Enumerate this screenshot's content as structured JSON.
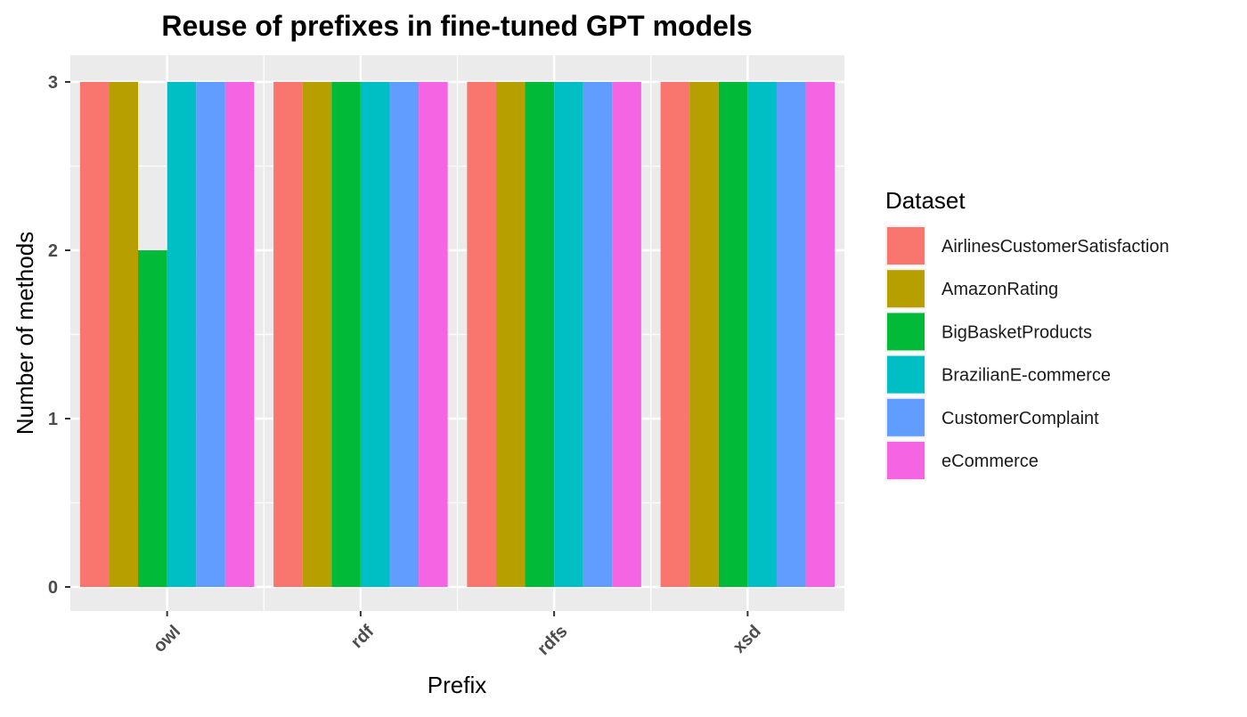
{
  "chart_data": {
    "type": "bar",
    "title": "Reuse of prefixes in fine-tuned GPT models",
    "xlabel": "Prefix",
    "ylabel": "Number of methods",
    "categories": [
      "owl",
      "rdf",
      "rdfs",
      "xsd"
    ],
    "ylim": [
      0,
      3
    ],
    "yticks": [
      0,
      1,
      2,
      3
    ],
    "grid": true,
    "legend": {
      "title": "Dataset",
      "placement": "right"
    },
    "series": [
      {
        "name": "AirlinesCustomerSatisfaction",
        "color": "#F8766D",
        "values": [
          3,
          3,
          3,
          3
        ]
      },
      {
        "name": "AmazonRating",
        "color": "#B79F00",
        "values": [
          3,
          3,
          3,
          3
        ]
      },
      {
        "name": "BigBasketProducts",
        "color": "#00BA38",
        "values": [
          2,
          3,
          3,
          3
        ]
      },
      {
        "name": "BrazilianE-commerce",
        "color": "#00BFC4",
        "values": [
          3,
          3,
          3,
          3
        ]
      },
      {
        "name": "CustomerComplaint",
        "color": "#619CFF",
        "values": [
          3,
          3,
          3,
          3
        ]
      },
      {
        "name": "eCommerce",
        "color": "#F564E3",
        "values": [
          3,
          3,
          3,
          3
        ]
      }
    ]
  }
}
